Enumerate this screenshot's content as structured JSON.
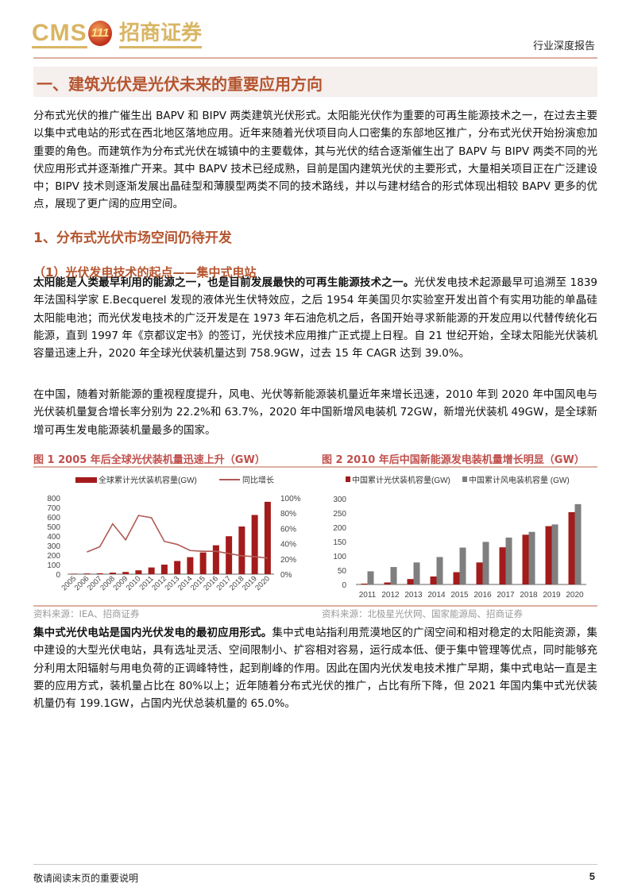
{
  "header": {
    "logo_text": "CMS 招商证券",
    "report_type": "行业深度报告"
  },
  "section_title": "一、建筑光伏是光伏未来的重要应用方向",
  "para1": "分布式光伏的推广催生出 BAPV 和 BIPV 两类建筑光伏形式。太阳能光伏作为重要的可再生能源技术之一，在过去主要以集中式电站的形式在西北地区落地应用。近年来随着光伏项目向人口密集的东部地区推广，分布式光伏开始扮演愈加重要的角色。而建筑作为分布式光伏在城镇中的主要载体，其与光伏的结合逐渐催生出了 BAPV 与 BIPV 两类不同的光伏应用形式并逐渐推广开来。其中 BAPV 技术已经成熟，目前是国内建筑光伏的主要形式，大量相关项目正在广泛建设中；BIPV 技术则逐渐发展出晶硅型和薄膜型两类不同的技术路线，并以与建材结合的形式体现出相较 BAPV 更多的优点，展现了更广阔的应用空间。",
  "heading2": "1、分布式光伏市场空间仍待开发",
  "heading3": "（1）光伏发电技术的起点——集中式电站",
  "para2_bold": "太阳能是人类最早利用的能源之一，也是目前发展最快的可再生能源技术之一。",
  "para2": "光伏发电技术起源最早可追溯至 1839 年法国科学家 E.Becquerel 发现的液体光生伏特效应，之后 1954 年美国贝尔实验室开发出首个有实用功能的单晶硅太阳能电池；而光伏发电技术的广泛开发是在 1973 年石油危机之后，各国开始寻求新能源的开发应用以代替传统化石能源，直到 1997 年《京都议定书》的签订，光伏技术应用推广正式提上日程。自 21 世纪开始，全球太阳能光伏装机容量迅速上升，2020 年全球光伏装机量达到 758.9GW，过去 15 年 CAGR 达到 39.0%。",
  "para3": "在中国，随着对新能源的重视程度提升，风电、光伏等新能源装机量近年来增长迅速，2010 年到 2020 年中国风电与光伏装机量复合增长率分别为 22.2%和 63.7%，2020 年中国新增风电装机 72GW，新增光伏装机 49GW，是全球新增可再生发电能源装机量最多的国家。",
  "fig1": {
    "title": "图 1 2005 年后全球光伏装机量迅速上升（GW）",
    "source": "资料来源：IEA、招商证券"
  },
  "fig2": {
    "title": "图 2 2010 年后中国新能源发电装机量增长明显（GW）",
    "source": "资料来源：北极星光伏网、国家能源局、招商证券"
  },
  "para4_bold": "集中式光伏电站是国内光伏发电的最初应用形式。",
  "para4": "集中式电站指利用荒漠地区的广阔空间和相对稳定的太阳能资源，集中建设的大型光伏电站，具有选址灵活、空间限制小、扩容相对容易，运行成本低、便于集中管理等优点，同时能够充分利用太阳辐射与用电负荷的正调峰特性，起到削峰的作用。因此在国内光伏发电技术推广早期，集中式电站一直是主要的应用方式，装机量占比在 80%以上；近年随着分布式光伏的推广，占比有所下降，但 2021 年国内集中式光伏装机量仍有 199.1GW，占国内光伏总装机量的 65.0%。",
  "footer": {
    "notice": "敬请阅读末页的重要说明",
    "page": "5"
  },
  "chart_data": [
    {
      "type": "bar+line",
      "categories": [
        "2005",
        "2006",
        "2007",
        "2008",
        "2009",
        "2010",
        "2011",
        "2012",
        "2013",
        "2014",
        "2015",
        "2016",
        "2017",
        "2018",
        "2019",
        "2020"
      ],
      "series": [
        {
          "name": "全球累计光伏装机容量(GW)",
          "type": "bar",
          "axis": "left",
          "color": "#a31b1b",
          "values": [
            5,
            7,
            9,
            16,
            23,
            40,
            70,
            100,
            138,
            178,
            228,
            303,
            398,
            500,
            621,
            759
          ]
        },
        {
          "name": "同比增长",
          "type": "line",
          "axis": "right",
          "color": "#b05a55",
          "values": [
            null,
            29,
            36,
            66,
            45,
            77,
            74,
            43,
            39,
            31,
            30,
            30,
            27,
            24,
            23,
            21
          ]
        }
      ],
      "yticks_left": [
        "0",
        "100",
        "200",
        "300",
        "400",
        "500",
        "600",
        "700",
        "800"
      ],
      "yticks_right": [
        "0%",
        "20%",
        "40%",
        "60%",
        "80%",
        "100%"
      ],
      "ylim_left": [
        0,
        800
      ],
      "ylim_right": [
        0,
        100
      ],
      "legend": "top",
      "grid": false
    },
    {
      "type": "bar",
      "categories": [
        "2011",
        "2012",
        "2013",
        "2014",
        "2015",
        "2016",
        "2017",
        "2018",
        "2019",
        "2020"
      ],
      "series": [
        {
          "name": "中国累计光伏装机容量(GW)",
          "color": "#a31b1b",
          "values": [
            3,
            7,
            19,
            28,
            43,
            77,
            130,
            174,
            204,
            253
          ]
        },
        {
          "name": "中国累计风电装机容量 (GW)",
          "color": "#7f7f7f",
          "values": [
            46,
            61,
            77,
            96,
            129,
            149,
            164,
            184,
            210,
            281
          ]
        }
      ],
      "yticks": [
        "0",
        "50",
        "100",
        "150",
        "200",
        "250",
        "300"
      ],
      "ylim": [
        0,
        300
      ],
      "legend": "top",
      "grid": false
    }
  ]
}
